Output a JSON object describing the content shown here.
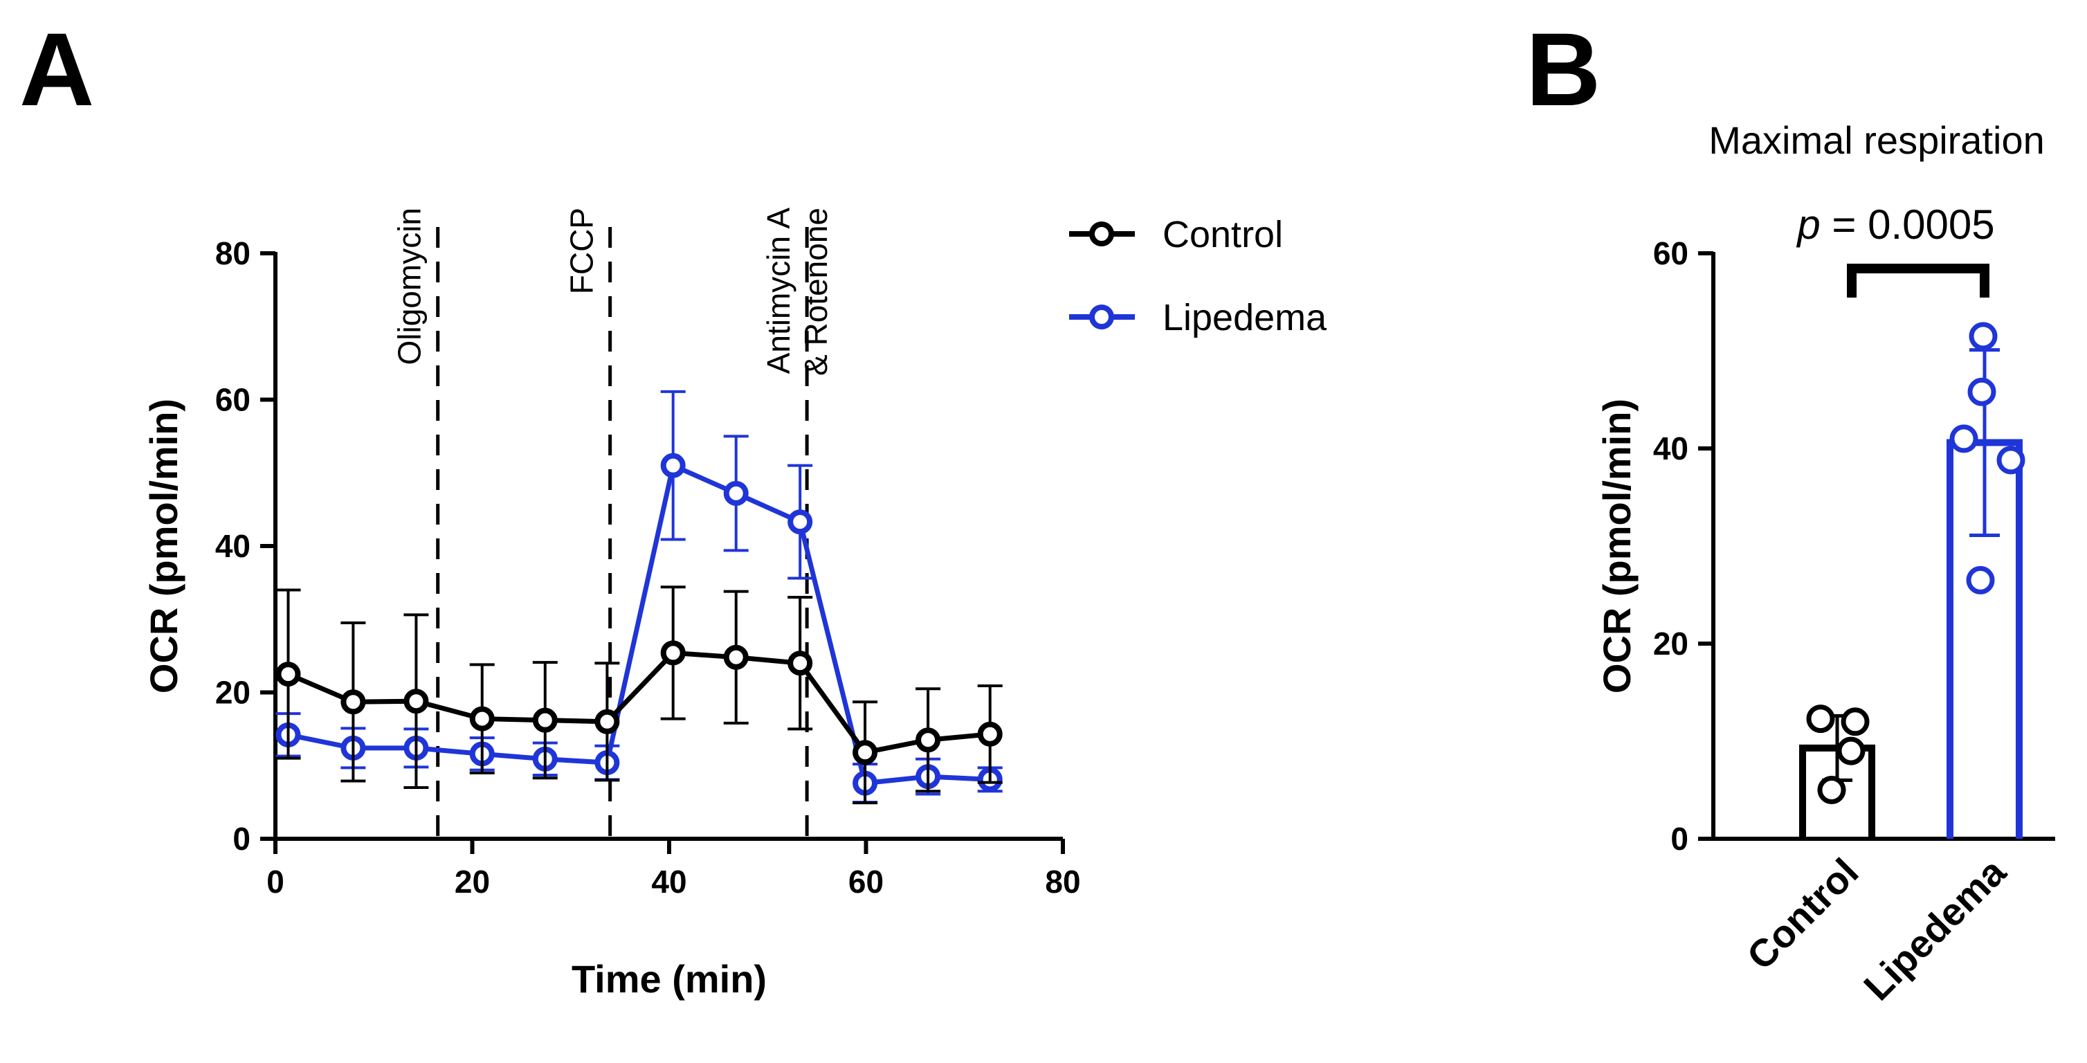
{
  "panels": {
    "a_label": "A",
    "b_label": "B"
  },
  "colors": {
    "control": "#000000",
    "lipedema": "#1f35d8"
  },
  "chart_data": [
    {
      "type": "line",
      "panel": "A",
      "title": "",
      "xlabel": "Time (min)",
      "ylabel": "OCR (pmol/min)",
      "xlim": [
        0,
        80
      ],
      "ylim": [
        0,
        80
      ],
      "xticks": [
        "0",
        "20",
        "40",
        "60",
        "80"
      ],
      "yticks": [
        "0",
        "20",
        "40",
        "60",
        "80"
      ],
      "legend_position": "top-right",
      "injections": [
        {
          "label": "Oligomycin",
          "x": 16.5
        },
        {
          "label": "FCCP",
          "x": 34
        },
        {
          "label": "Antimycin A",
          "label2": "& Rotenone",
          "x": 54
        }
      ],
      "x": [
        1.3,
        7.9,
        14.3,
        21,
        27.4,
        33.7,
        40.4,
        46.8,
        53.3,
        59.9,
        66.3,
        72.6
      ],
      "series": [
        {
          "name": "Control",
          "values": [
            22.5,
            18.7,
            18.8,
            16.4,
            16.2,
            16.0,
            25.4,
            24.8,
            24.0,
            11.8,
            13.5,
            14.3
          ],
          "errors": [
            11.5,
            10.8,
            11.8,
            7.4,
            7.9,
            8.0,
            9.0,
            9.0,
            9.0,
            6.9,
            7.0,
            6.6
          ]
        },
        {
          "name": "Lipedema",
          "values": [
            14.2,
            12.4,
            12.4,
            11.6,
            10.9,
            10.4,
            51.0,
            47.2,
            43.3,
            7.6,
            8.5,
            8.1
          ],
          "errors": [
            2.9,
            2.7,
            2.6,
            2.2,
            2.2,
            2.3,
            10.1,
            7.8,
            7.7,
            2.6,
            2.4,
            1.6
          ]
        }
      ]
    },
    {
      "type": "bar",
      "panel": "B",
      "title": "Maximal respiration",
      "xlabel": "",
      "ylabel": "OCR (pmol/min)",
      "ylim": [
        0,
        60
      ],
      "yticks": [
        "0",
        "20",
        "40",
        "60"
      ],
      "categories": [
        "Control",
        "Lipedema"
      ],
      "values": [
        9.3,
        40.6
      ],
      "errors": [
        3.3,
        9.5
      ],
      "points": [
        [
          12.3,
          12.0,
          9.0,
          5.0
        ],
        [
          51.5,
          45.8,
          41.0,
          38.8,
          26.5
        ]
      ],
      "p_label": "p",
      "p_value": "= 0.0005"
    }
  ]
}
